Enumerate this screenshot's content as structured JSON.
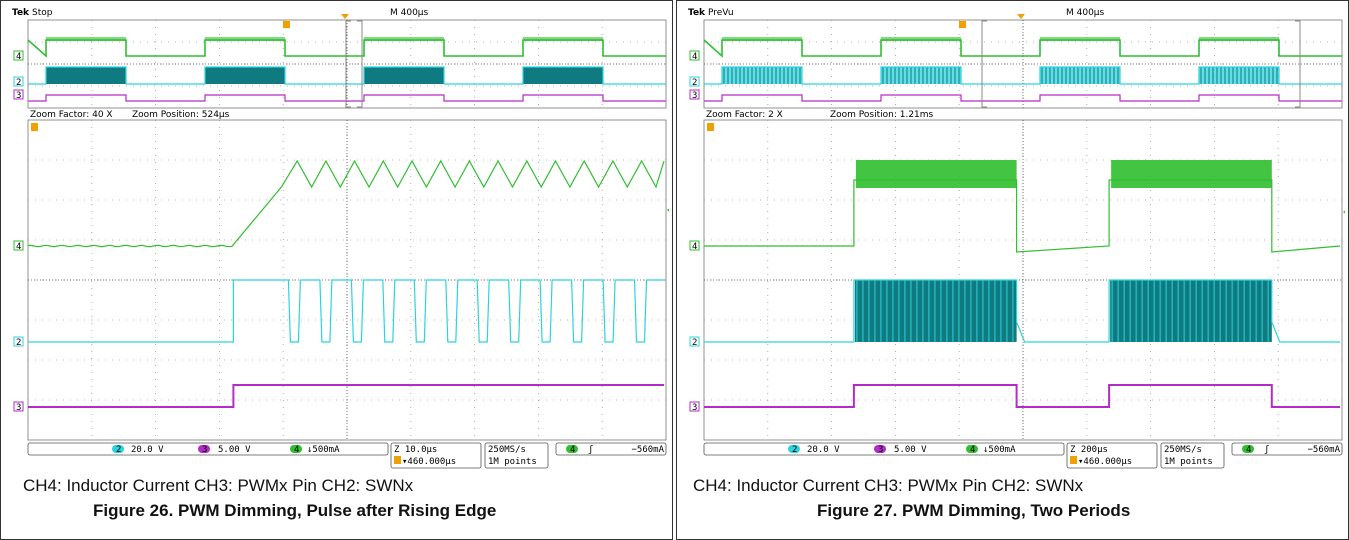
{
  "colors": {
    "ch4": "#2fbf2f",
    "ch2": "#2cd3dd",
    "ch2_fill": "#0f7a80",
    "ch3": "#b42cc8",
    "trigger": "#f0a000",
    "grid": "#9a9a9a"
  },
  "chart_data": [
    {
      "type": "line",
      "scope_status": "Stop",
      "brand": "Tek",
      "timebase": "M 400µs",
      "zoom_factor": "Zoom Factor: 40 X",
      "zoom_position": "Zoom Position: 524µs",
      "ch2_scale": "20.0 V",
      "ch3_scale": "5.00 V",
      "ch4_scale": "↓500mA",
      "zoom_timebase": "Z 10.0µs",
      "trigger_offset": "▾460.000µs",
      "sample_rate": "250MS/s",
      "record_length": "1M points",
      "trigger_level": "−560mA",
      "channel_labels": [
        "4",
        "2",
        "3"
      ],
      "caption": "CH4: Inductor Current CH3: PWMx Pin CH2: SWNx",
      "figure_title": "Figure 26. PWM Dimming, Pulse after Rising Edge",
      "zoom_view": {
        "divisions_x": 10,
        "rise_start_div": 3.5,
        "ch4_low_level": -0.05,
        "ch4_ramp_peak": 1.05,
        "ch4_ripple_cycles": 13,
        "ch2_pulses": 13
      }
    },
    {
      "type": "line",
      "scope_status": "PreVu",
      "brand": "Tek",
      "timebase": "M 400µs",
      "zoom_factor": "Zoom Factor: 2 X",
      "zoom_position": "Zoom Position: 1.21ms",
      "ch2_scale": "20.0 V",
      "ch3_scale": "5.00 V",
      "ch4_scale": "↓500mA",
      "zoom_timebase": "Z 200µs",
      "trigger_offset": "▾460.000µs",
      "sample_rate": "250MS/s",
      "record_length": "1M points",
      "trigger_level": "−560mA",
      "channel_labels": [
        "4",
        "2",
        "3"
      ],
      "caption": "CH4: Inductor Current CH3: PWMx Pin CH2: SWNx",
      "figure_title": "Figure 27. PWM Dimming, Two Periods",
      "zoom_view": {
        "divisions_x": 10,
        "pwm_on_intervals_div": [
          [
            2.35,
            4.9
          ],
          [
            6.35,
            8.9
          ]
        ]
      }
    }
  ]
}
